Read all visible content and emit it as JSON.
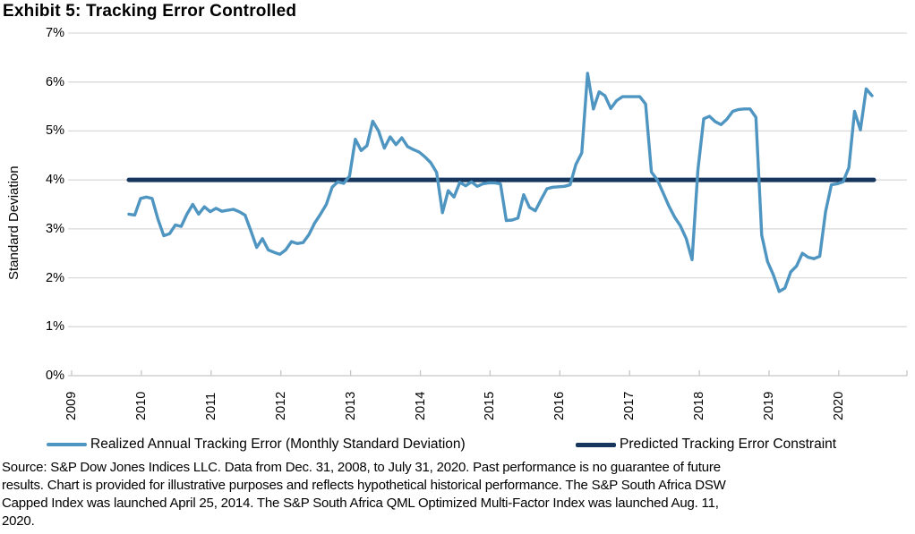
{
  "page": {
    "title": "Exhibit 5: Tracking Error Controlled"
  },
  "chart_data": {
    "type": "line",
    "title": "Exhibit 5: Tracking Error Controlled",
    "ylabel": "Standard Deviation",
    "xlabel": "",
    "ylim": [
      0,
      7
    ],
    "ytick_labels": [
      "0%",
      "1%",
      "2%",
      "3%",
      "4%",
      "5%",
      "6%",
      "7%"
    ],
    "xtick_labels": [
      "2009",
      "2010",
      "2011",
      "2012",
      "2013",
      "2014",
      "2015",
      "2016",
      "2017",
      "2018",
      "2019",
      "2020"
    ],
    "grid": "horizontal",
    "legend_position": "bottom",
    "points_frequency": "monthly",
    "x_start_month": "2009-11",
    "x_end_month": "2020-07",
    "series": [
      {
        "name": "Realized Annual Tracking Error (Monthly Standard Deviation)",
        "color": "#4F95C1",
        "type": "line",
        "unit": "%",
        "values": [
          3.3,
          3.28,
          3.62,
          3.65,
          3.62,
          3.2,
          2.86,
          2.9,
          3.08,
          3.05,
          3.3,
          3.5,
          3.3,
          3.45,
          3.35,
          3.42,
          3.36,
          3.38,
          3.4,
          3.35,
          3.28,
          2.96,
          2.62,
          2.8,
          2.57,
          2.52,
          2.48,
          2.57,
          2.74,
          2.7,
          2.72,
          2.88,
          3.12,
          3.3,
          3.5,
          3.85,
          3.96,
          3.93,
          4.08,
          4.83,
          4.6,
          4.7,
          5.2,
          5.0,
          4.65,
          4.88,
          4.72,
          4.86,
          4.68,
          4.62,
          4.57,
          4.47,
          4.35,
          4.15,
          3.33,
          3.78,
          3.65,
          3.95,
          3.88,
          3.96,
          3.87,
          3.92,
          3.94,
          3.94,
          3.92,
          3.17,
          3.18,
          3.22,
          3.7,
          3.44,
          3.37,
          3.6,
          3.82,
          3.85,
          3.86,
          3.87,
          3.9,
          4.32,
          4.55,
          6.18,
          5.45,
          5.8,
          5.72,
          5.46,
          5.62,
          5.7,
          5.7,
          5.7,
          5.7,
          5.55,
          4.16,
          4.0,
          3.74,
          3.47,
          3.24,
          3.06,
          2.8,
          2.37,
          4.2,
          5.25,
          5.3,
          5.19,
          5.13,
          5.24,
          5.4,
          5.44,
          5.45,
          5.45,
          5.28,
          2.87,
          2.33,
          2.06,
          1.72,
          1.79,
          2.12,
          2.24,
          2.5,
          2.42,
          2.39,
          2.44,
          3.35,
          3.9,
          3.92,
          3.96,
          4.25,
          5.4,
          5.02,
          5.86,
          5.72
        ]
      },
      {
        "name": "Predicted Tracking Error Constraint",
        "color": "#17365D",
        "type": "constant-line",
        "unit": "%",
        "value": 4.0
      }
    ]
  },
  "source": {
    "lines": [
      "Source: S&P Dow Jones Indices LLC. Data from Dec. 31, 2008, to July 31, 2020. Past performance is no guarantee of future",
      "results. Chart is provided for illustrative purposes and reflects hypothetical historical performance. The S&P South Africa DSW",
      "Capped Index was launched April 25, 2014. The S&P South Africa QML Optimized Multi-Factor Index was launched Aug. 11,",
      "2020."
    ]
  }
}
